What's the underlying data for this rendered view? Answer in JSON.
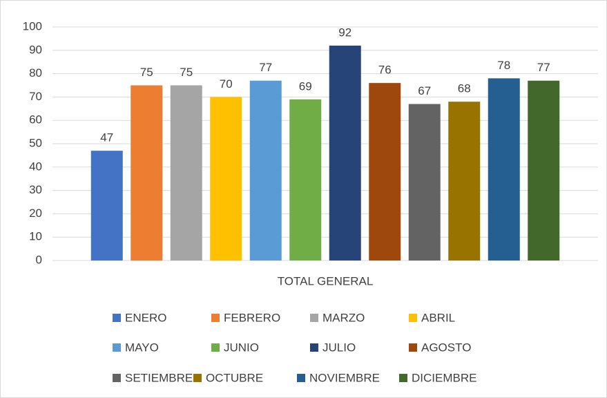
{
  "chart_data": {
    "type": "bar",
    "categories": [
      "TOTAL GENERAL"
    ],
    "series": [
      {
        "name": "ENERO",
        "color": "#4472c4",
        "values": [
          47
        ]
      },
      {
        "name": "FEBRERO",
        "color": "#ed7d31",
        "values": [
          75
        ]
      },
      {
        "name": "MARZO",
        "color": "#a5a5a5",
        "values": [
          75
        ]
      },
      {
        "name": "ABRIL",
        "color": "#ffc000",
        "values": [
          70
        ]
      },
      {
        "name": "MAYO",
        "color": "#5b9bd5",
        "values": [
          77
        ]
      },
      {
        "name": "JUNIO",
        "color": "#70ad47",
        "values": [
          69
        ]
      },
      {
        "name": "JULIO",
        "color": "#264478",
        "values": [
          92
        ]
      },
      {
        "name": "AGOSTO",
        "color": "#9e480e",
        "values": [
          76
        ]
      },
      {
        "name": "SETIEMBRE",
        "color": "#636363",
        "values": [
          67
        ]
      },
      {
        "name": "OCTUBRE",
        "color": "#997300",
        "values": [
          68
        ]
      },
      {
        "name": "NOVIEMBRE",
        "color": "#255e91",
        "values": [
          78
        ]
      },
      {
        "name": "DICIEMBRE",
        "color": "#43682b",
        "values": [
          77
        ]
      }
    ],
    "ylim": [
      0,
      100
    ],
    "yticks": [
      0,
      10,
      20,
      30,
      40,
      50,
      60,
      70,
      80,
      90,
      100
    ],
    "grid": true,
    "legend": "bottom"
  }
}
